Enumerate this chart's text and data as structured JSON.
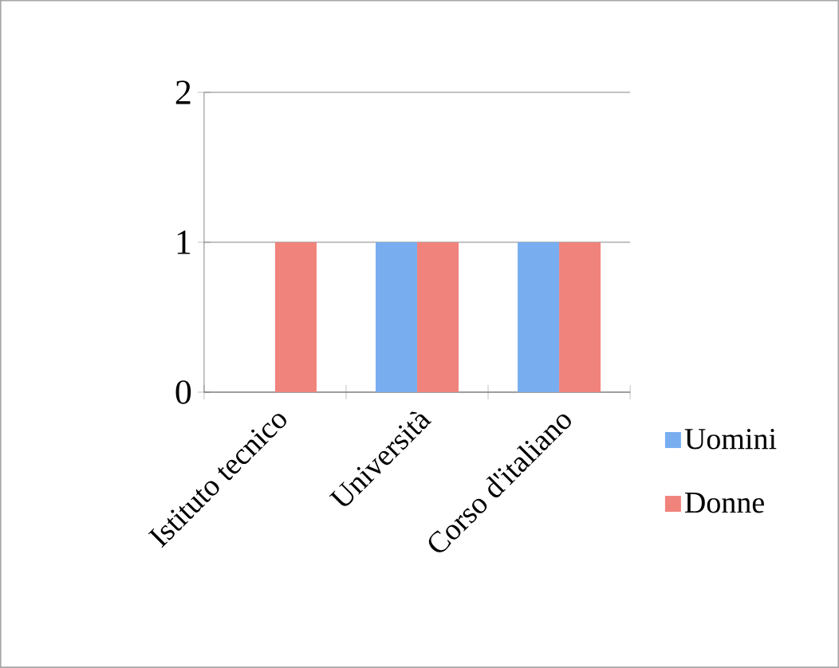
{
  "chart_data": {
    "type": "bar",
    "categories": [
      "Istituto tecnico",
      "Università",
      "Corso d'italiano"
    ],
    "series": [
      {
        "name": "Uomini",
        "color": "#78aef0",
        "values": [
          0,
          1,
          1
        ]
      },
      {
        "name": "Donne",
        "color": "#f0837c",
        "values": [
          1,
          1,
          1
        ]
      }
    ],
    "ylim": [
      0,
      2
    ],
    "yticks": [
      0,
      1,
      2
    ],
    "grid": "y",
    "legend": "right"
  }
}
